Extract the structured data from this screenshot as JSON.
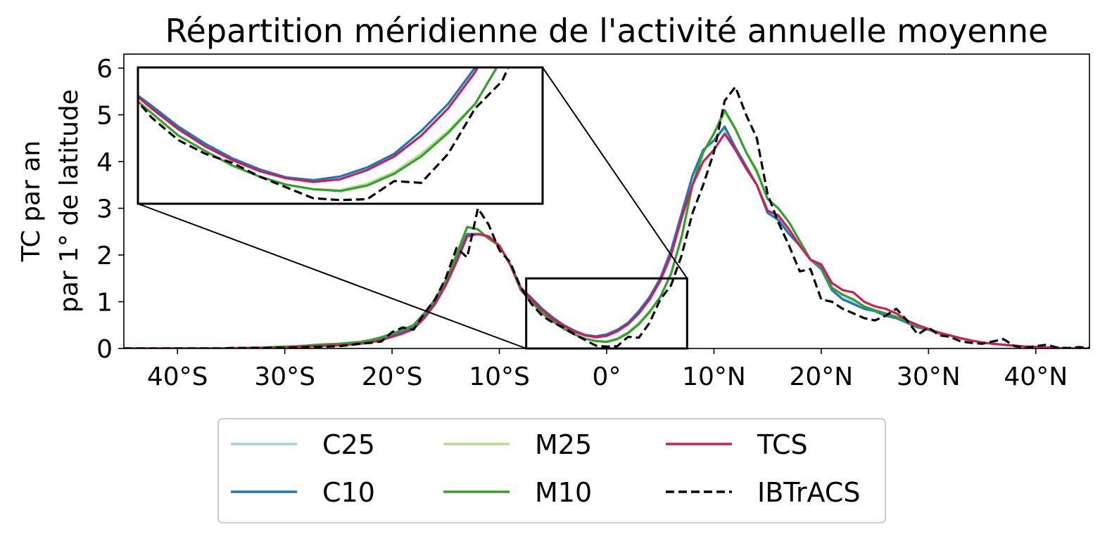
{
  "chart_data": {
    "type": "line",
    "title": "Répartition méridienne de l'activité annuelle moyenne",
    "xlabel": "",
    "ylabel_lines": [
      "TC par an",
      "par 1° de latitude"
    ],
    "xlim": [
      -45,
      45
    ],
    "ylim": [
      0,
      6.3
    ],
    "xticks": [
      -40,
      -30,
      -20,
      -10,
      0,
      10,
      20,
      30,
      40
    ],
    "xtick_labels": [
      "40°S",
      "30°S",
      "20°S",
      "10°S",
      "0°",
      "10°N",
      "20°N",
      "30°N",
      "40°N"
    ],
    "yticks": [
      0,
      1,
      2,
      3,
      4,
      5,
      6
    ],
    "ytick_labels": [
      "0",
      "1",
      "2",
      "3",
      "4",
      "5",
      "6"
    ],
    "legend_location": "lower center, outside plot",
    "inset": {
      "xlim": [
        -7.5,
        7.5
      ],
      "ylim": [
        0,
        1.5
      ],
      "location": "upper-left"
    },
    "x": [
      -45,
      -44,
      -43,
      -42,
      -41,
      -40,
      -39,
      -38,
      -37,
      -36,
      -35,
      -34,
      -33,
      -32,
      -31,
      -30,
      -29,
      -28,
      -27,
      -26,
      -25,
      -24,
      -23,
      -22,
      -21,
      -20,
      -19,
      -18,
      -17,
      -16,
      -15,
      -14,
      -13,
      -12,
      -11,
      -10,
      -9,
      -8,
      -7,
      -6,
      -5,
      -4,
      -3,
      -2,
      -1,
      0,
      1,
      2,
      3,
      4,
      5,
      6,
      7,
      8,
      9,
      10,
      11,
      12,
      13,
      14,
      15,
      16,
      17,
      18,
      19,
      20,
      21,
      22,
      23,
      24,
      25,
      26,
      27,
      28,
      29,
      30,
      31,
      32,
      33,
      34,
      35,
      36,
      37,
      38,
      39,
      40,
      41,
      42,
      43,
      44,
      45
    ],
    "series": [
      {
        "name": "C25",
        "color": "#a6cee3",
        "dash": false,
        "values": [
          0,
          0,
          0,
          0,
          0,
          0,
          0,
          0,
          0,
          0,
          0,
          0.01,
          0.01,
          0.02,
          0.02,
          0.03,
          0.04,
          0.05,
          0.06,
          0.07,
          0.08,
          0.1,
          0.12,
          0.15,
          0.2,
          0.28,
          0.35,
          0.45,
          0.7,
          1.0,
          1.4,
          1.9,
          2.4,
          2.45,
          2.4,
          2.2,
          1.8,
          1.3,
          1.08,
          0.85,
          0.65,
          0.5,
          0.38,
          0.29,
          0.26,
          0.3,
          0.4,
          0.55,
          0.8,
          1.1,
          1.5,
          2.1,
          2.9,
          3.7,
          4.25,
          4.45,
          4.7,
          4.3,
          3.9,
          3.5,
          2.9,
          2.8,
          2.5,
          2.2,
          1.9,
          1.7,
          1.25,
          1.08,
          1.0,
          0.85,
          0.8,
          0.7,
          0.65,
          0.55,
          0.45,
          0.4,
          0.32,
          0.28,
          0.22,
          0.17,
          0.13,
          0.1,
          0.08,
          0.06,
          0.04,
          0.03,
          0.02,
          0.01,
          0,
          0,
          0
        ]
      },
      {
        "name": "C10",
        "color": "#1f78b4",
        "dash": false,
        "values": [
          0,
          0,
          0,
          0,
          0,
          0,
          0,
          0,
          0,
          0,
          0,
          0.01,
          0.01,
          0.02,
          0.02,
          0.03,
          0.04,
          0.05,
          0.06,
          0.07,
          0.08,
          0.1,
          0.12,
          0.15,
          0.2,
          0.28,
          0.35,
          0.45,
          0.7,
          1.0,
          1.4,
          1.9,
          2.45,
          2.45,
          2.4,
          2.2,
          1.8,
          1.3,
          1.08,
          0.85,
          0.66,
          0.5,
          0.38,
          0.29,
          0.26,
          0.3,
          0.4,
          0.55,
          0.8,
          1.1,
          1.5,
          2.1,
          2.9,
          3.7,
          4.25,
          4.45,
          4.75,
          4.3,
          3.9,
          3.5,
          2.9,
          2.75,
          2.45,
          2.2,
          1.9,
          1.7,
          1.25,
          1.05,
          0.95,
          0.85,
          0.8,
          0.7,
          0.65,
          0.55,
          0.45,
          0.4,
          0.32,
          0.28,
          0.22,
          0.17,
          0.13,
          0.1,
          0.08,
          0.06,
          0.04,
          0.03,
          0.02,
          0.01,
          0,
          0,
          0
        ]
      },
      {
        "name": "M25",
        "color": "#b2df8a",
        "dash": false,
        "values": [
          0,
          0,
          0,
          0,
          0,
          0,
          0,
          0,
          0,
          0,
          0.01,
          0.01,
          0.02,
          0.02,
          0.03,
          0.04,
          0.05,
          0.06,
          0.08,
          0.09,
          0.1,
          0.12,
          0.14,
          0.18,
          0.24,
          0.32,
          0.4,
          0.5,
          0.75,
          1.05,
          1.45,
          2.0,
          2.6,
          2.55,
          2.35,
          2.2,
          1.8,
          1.25,
          1.0,
          0.75,
          0.58,
          0.42,
          0.3,
          0.21,
          0.16,
          0.15,
          0.22,
          0.35,
          0.55,
          0.8,
          1.1,
          1.6,
          2.4,
          3.5,
          4.2,
          4.6,
          5.05,
          4.7,
          4.2,
          3.75,
          3.2,
          3.0,
          2.7,
          2.3,
          1.9,
          1.75,
          1.3,
          1.15,
          1.05,
          0.9,
          0.82,
          0.75,
          0.68,
          0.58,
          0.48,
          0.4,
          0.33,
          0.28,
          0.22,
          0.17,
          0.13,
          0.1,
          0.08,
          0.06,
          0.04,
          0.03,
          0.02,
          0.01,
          0,
          0,
          0
        ]
      },
      {
        "name": "M10",
        "color": "#33a02c",
        "dash": false,
        "values": [
          0,
          0,
          0,
          0,
          0,
          0,
          0,
          0,
          0,
          0,
          0.01,
          0.01,
          0.02,
          0.02,
          0.03,
          0.04,
          0.05,
          0.06,
          0.08,
          0.09,
          0.1,
          0.12,
          0.14,
          0.18,
          0.24,
          0.32,
          0.4,
          0.5,
          0.75,
          1.05,
          1.45,
          2.0,
          2.6,
          2.55,
          2.35,
          2.2,
          1.8,
          1.25,
          1.0,
          0.75,
          0.58,
          0.42,
          0.3,
          0.21,
          0.16,
          0.14,
          0.2,
          0.33,
          0.52,
          0.78,
          1.1,
          1.6,
          2.4,
          3.5,
          4.2,
          4.6,
          5.1,
          4.7,
          4.2,
          3.8,
          3.2,
          3.0,
          2.7,
          2.3,
          1.9,
          1.75,
          1.3,
          1.15,
          1.05,
          0.9,
          0.82,
          0.75,
          0.68,
          0.58,
          0.48,
          0.4,
          0.33,
          0.28,
          0.22,
          0.17,
          0.13,
          0.1,
          0.08,
          0.06,
          0.04,
          0.03,
          0.02,
          0.01,
          0,
          0,
          0
        ]
      },
      {
        "name": "TCS",
        "color": "#d01c5b",
        "dash": false,
        "values": [
          0,
          0,
          0,
          0,
          0,
          0,
          0,
          0,
          0,
          0,
          0,
          0.01,
          0.01,
          0.01,
          0.02,
          0.02,
          0.03,
          0.04,
          0.05,
          0.06,
          0.07,
          0.08,
          0.1,
          0.13,
          0.18,
          0.25,
          0.32,
          0.42,
          0.65,
          0.95,
          1.35,
          1.85,
          2.4,
          2.45,
          2.4,
          2.2,
          1.8,
          1.3,
          1.05,
          0.82,
          0.63,
          0.48,
          0.36,
          0.28,
          0.24,
          0.27,
          0.37,
          0.52,
          0.75,
          1.05,
          1.45,
          2.0,
          2.8,
          3.5,
          4.0,
          4.25,
          4.6,
          4.25,
          3.85,
          3.5,
          2.95,
          2.85,
          2.55,
          2.2,
          1.9,
          1.8,
          1.4,
          1.25,
          1.2,
          1.0,
          0.9,
          0.85,
          0.75,
          0.6,
          0.5,
          0.42,
          0.34,
          0.28,
          0.22,
          0.17,
          0.13,
          0.1,
          0.08,
          0.06,
          0.04,
          0.03,
          0.02,
          0.01,
          0,
          0,
          0
        ]
      },
      {
        "name": "IBTrACS",
        "color": "#000000",
        "dash": true,
        "values": [
          0,
          0,
          0,
          0,
          0,
          0,
          0,
          0,
          0,
          0,
          0.01,
          0.01,
          0.01,
          0.01,
          0.02,
          0.02,
          0.02,
          0.03,
          0.03,
          0.04,
          0.05,
          0.07,
          0.1,
          0.12,
          0.15,
          0.35,
          0.45,
          0.4,
          0.75,
          1.05,
          1.5,
          2.15,
          1.95,
          3.0,
          2.65,
          2.1,
          1.85,
          1.3,
          0.95,
          0.7,
          0.55,
          0.45,
          0.3,
          0.18,
          0.06,
          0.04,
          0.05,
          0.25,
          0.23,
          0.55,
          1.05,
          1.35,
          2.0,
          2.9,
          3.5,
          4.2,
          5.3,
          5.6,
          5.0,
          4.5,
          3.3,
          2.7,
          2.2,
          1.65,
          1.7,
          1.05,
          1.0,
          0.85,
          0.75,
          0.65,
          0.6,
          0.7,
          0.85,
          0.6,
          0.3,
          0.45,
          0.28,
          0.25,
          0.15,
          0.12,
          0.1,
          0.15,
          0.2,
          0.05,
          0.02,
          0.05,
          0.08,
          0.02,
          0.01,
          0.03,
          0.01
        ]
      }
    ]
  }
}
